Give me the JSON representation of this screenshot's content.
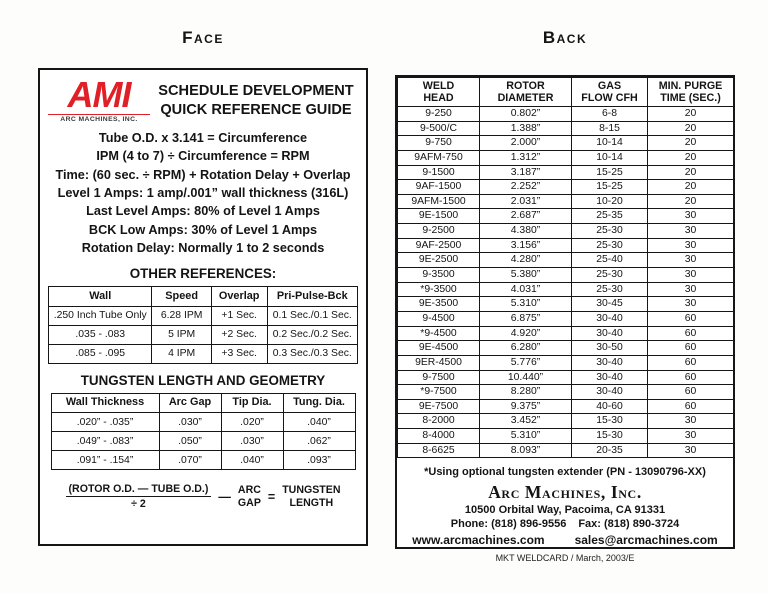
{
  "page": {
    "face_label": "Face",
    "back_label": "Back"
  },
  "face": {
    "logo": {
      "brand": "AMI",
      "company": "Arc Machines, Inc."
    },
    "title": "SCHEDULE DEVELOPMENT\nQUICK REFERENCE GUIDE",
    "formulas": [
      "Tube O.D. x 3.141 = Circumference",
      "IPM (4 to 7) ÷ Circumference = RPM",
      "Time: (60 sec. ÷ RPM) + Rotation Delay + Overlap",
      "Level 1 Amps: 1 amp/.001” wall thickness (316L)",
      "Last Level Amps: 80% of Level 1 Amps",
      "BCK Low Amps: 30% of Level 1 Amps",
      "Rotation Delay: Normally 1 to 2 seconds"
    ],
    "other_references": {
      "heading": "OTHER REFERENCES:",
      "headers": [
        "Wall",
        "Speed",
        "Overlap",
        "Pri-Pulse-Bck"
      ],
      "rows": [
        [
          ".250 Inch Tube Only",
          "6.28 IPM",
          "+1 Sec.",
          "0.1 Sec./0.1 Sec."
        ],
        [
          ".035 - .083",
          "5 IPM",
          "+2 Sec.",
          "0.2 Sec./0.2 Sec."
        ],
        [
          ".085 - .095",
          "4 IPM",
          "+3 Sec.",
          "0.3 Sec./0.3 Sec."
        ]
      ]
    },
    "tungsten": {
      "heading": "TUNGSTEN LENGTH AND GEOMETRY",
      "headers": [
        "Wall Thickness",
        "Arc Gap",
        "Tip Dia.",
        "Tung. Dia."
      ],
      "rows": [
        [
          ".020” - .035”",
          ".030”",
          ".020”",
          ".040”"
        ],
        [
          ".049” - .083”",
          ".050”",
          ".030”",
          ".062”"
        ],
        [
          ".091” - .154”",
          ".070”",
          ".040”",
          ".093”"
        ]
      ]
    },
    "length_formula": {
      "numerator": "(ROTOR O.D. — TUBE O.D.)",
      "denominator": "÷ 2",
      "minus_sign": "—",
      "arc_top": "ARC",
      "arc_bottom": "GAP",
      "equals_sign": "=",
      "result_top": "TUNGSTEN",
      "result_bottom": "LENGTH"
    }
  },
  "back": {
    "table": {
      "headers": [
        "WELD\nHEAD",
        "ROTOR\nDIAMETER",
        "GAS\nFLOW CFH",
        "MIN. PURGE\nTIME (SEC.)"
      ],
      "rows": [
        [
          "9-250",
          "0.802”",
          "6-8",
          "20"
        ],
        [
          "9-500/C",
          "1.388”",
          "8-15",
          "20"
        ],
        [
          "9-750",
          "2.000”",
          "10-14",
          "20"
        ],
        [
          "9AFM-750",
          "1.312”",
          "10-14",
          "20"
        ],
        [
          "9-1500",
          "3.187”",
          "15-25",
          "20"
        ],
        [
          "9AF-1500",
          "2.252”",
          "15-25",
          "20"
        ],
        [
          "9AFM-1500",
          "2.031”",
          "10-20",
          "20"
        ],
        [
          "9E-1500",
          "2.687”",
          "25-35",
          "30"
        ],
        [
          "9-2500",
          "4.380”",
          "25-30",
          "30"
        ],
        [
          "9AF-2500",
          "3.156”",
          "25-30",
          "30"
        ],
        [
          "9E-2500",
          "4.280”",
          "25-40",
          "30"
        ],
        [
          "9-3500",
          "5.380”",
          "25-30",
          "30"
        ],
        [
          "*9-3500",
          "4.031”",
          "25-30",
          "30"
        ],
        [
          "9E-3500",
          "5.310”",
          "30-45",
          "30"
        ],
        [
          "9-4500",
          "6.875”",
          "30-40",
          "60"
        ],
        [
          "*9-4500",
          "4.920”",
          "30-40",
          "60"
        ],
        [
          "9E-4500",
          "6.280”",
          "30-50",
          "60"
        ],
        [
          "9ER-4500",
          "5.776”",
          "30-40",
          "60"
        ],
        [
          "9-7500",
          "10.440”",
          "30-40",
          "60"
        ],
        [
          "*9-7500",
          "8.280”",
          "30-40",
          "60"
        ],
        [
          "9E-7500",
          "9.375”",
          "40-60",
          "60"
        ],
        [
          "8-2000",
          "3.452”",
          "15-30",
          "30"
        ],
        [
          "8-4000",
          "5.310”",
          "15-30",
          "30"
        ],
        [
          "8-6625",
          "8.093”",
          "20-35",
          "30"
        ]
      ]
    },
    "note": "*Using optional tungsten extender (PN - 13090796-XX)",
    "company": "Arc Machines, Inc.",
    "address": "10500 Orbital Way, Pacoima, CA 91331",
    "phone": "Phone: (818) 896-9556",
    "fax": "Fax: (818) 890-3724",
    "website": "www.arcmachines.com",
    "email": "sales@arcmachines.com",
    "footer": "MKT WELDCARD / March, 2003/E"
  }
}
